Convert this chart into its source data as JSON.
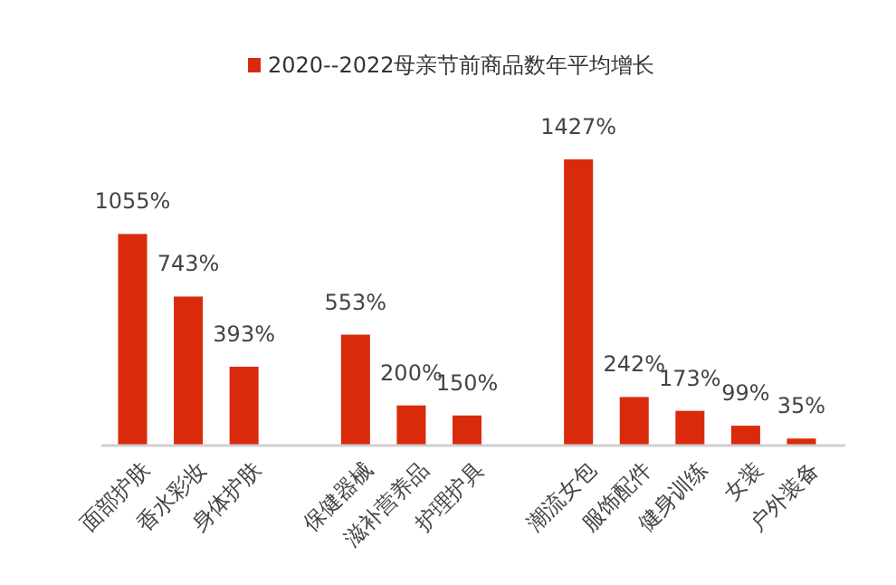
{
  "chart_data": {
    "type": "bar",
    "categories": [
      "面部护肤",
      "香水彩妆",
      "身体护肤",
      null,
      "保健器械",
      "滋补营养品",
      "护理护具",
      null,
      "潮流女包",
      "服饰配件",
      "健身训练",
      "女装",
      "户外装备"
    ],
    "series": [
      {
        "name": "2020--2022母亲节前商品数年平均增长",
        "color": "#d92b0c",
        "values": [
          1055,
          743,
          393,
          null,
          553,
          200,
          150,
          null,
          1427,
          242,
          173,
          99,
          35
        ],
        "value_labels": [
          "1055%",
          "743%",
          "393%",
          null,
          "553%",
          "200%",
          "150%",
          null,
          "1427%",
          "242%",
          "173%",
          "99%",
          "35%"
        ]
      }
    ],
    "legend": "top",
    "grid": false
  }
}
